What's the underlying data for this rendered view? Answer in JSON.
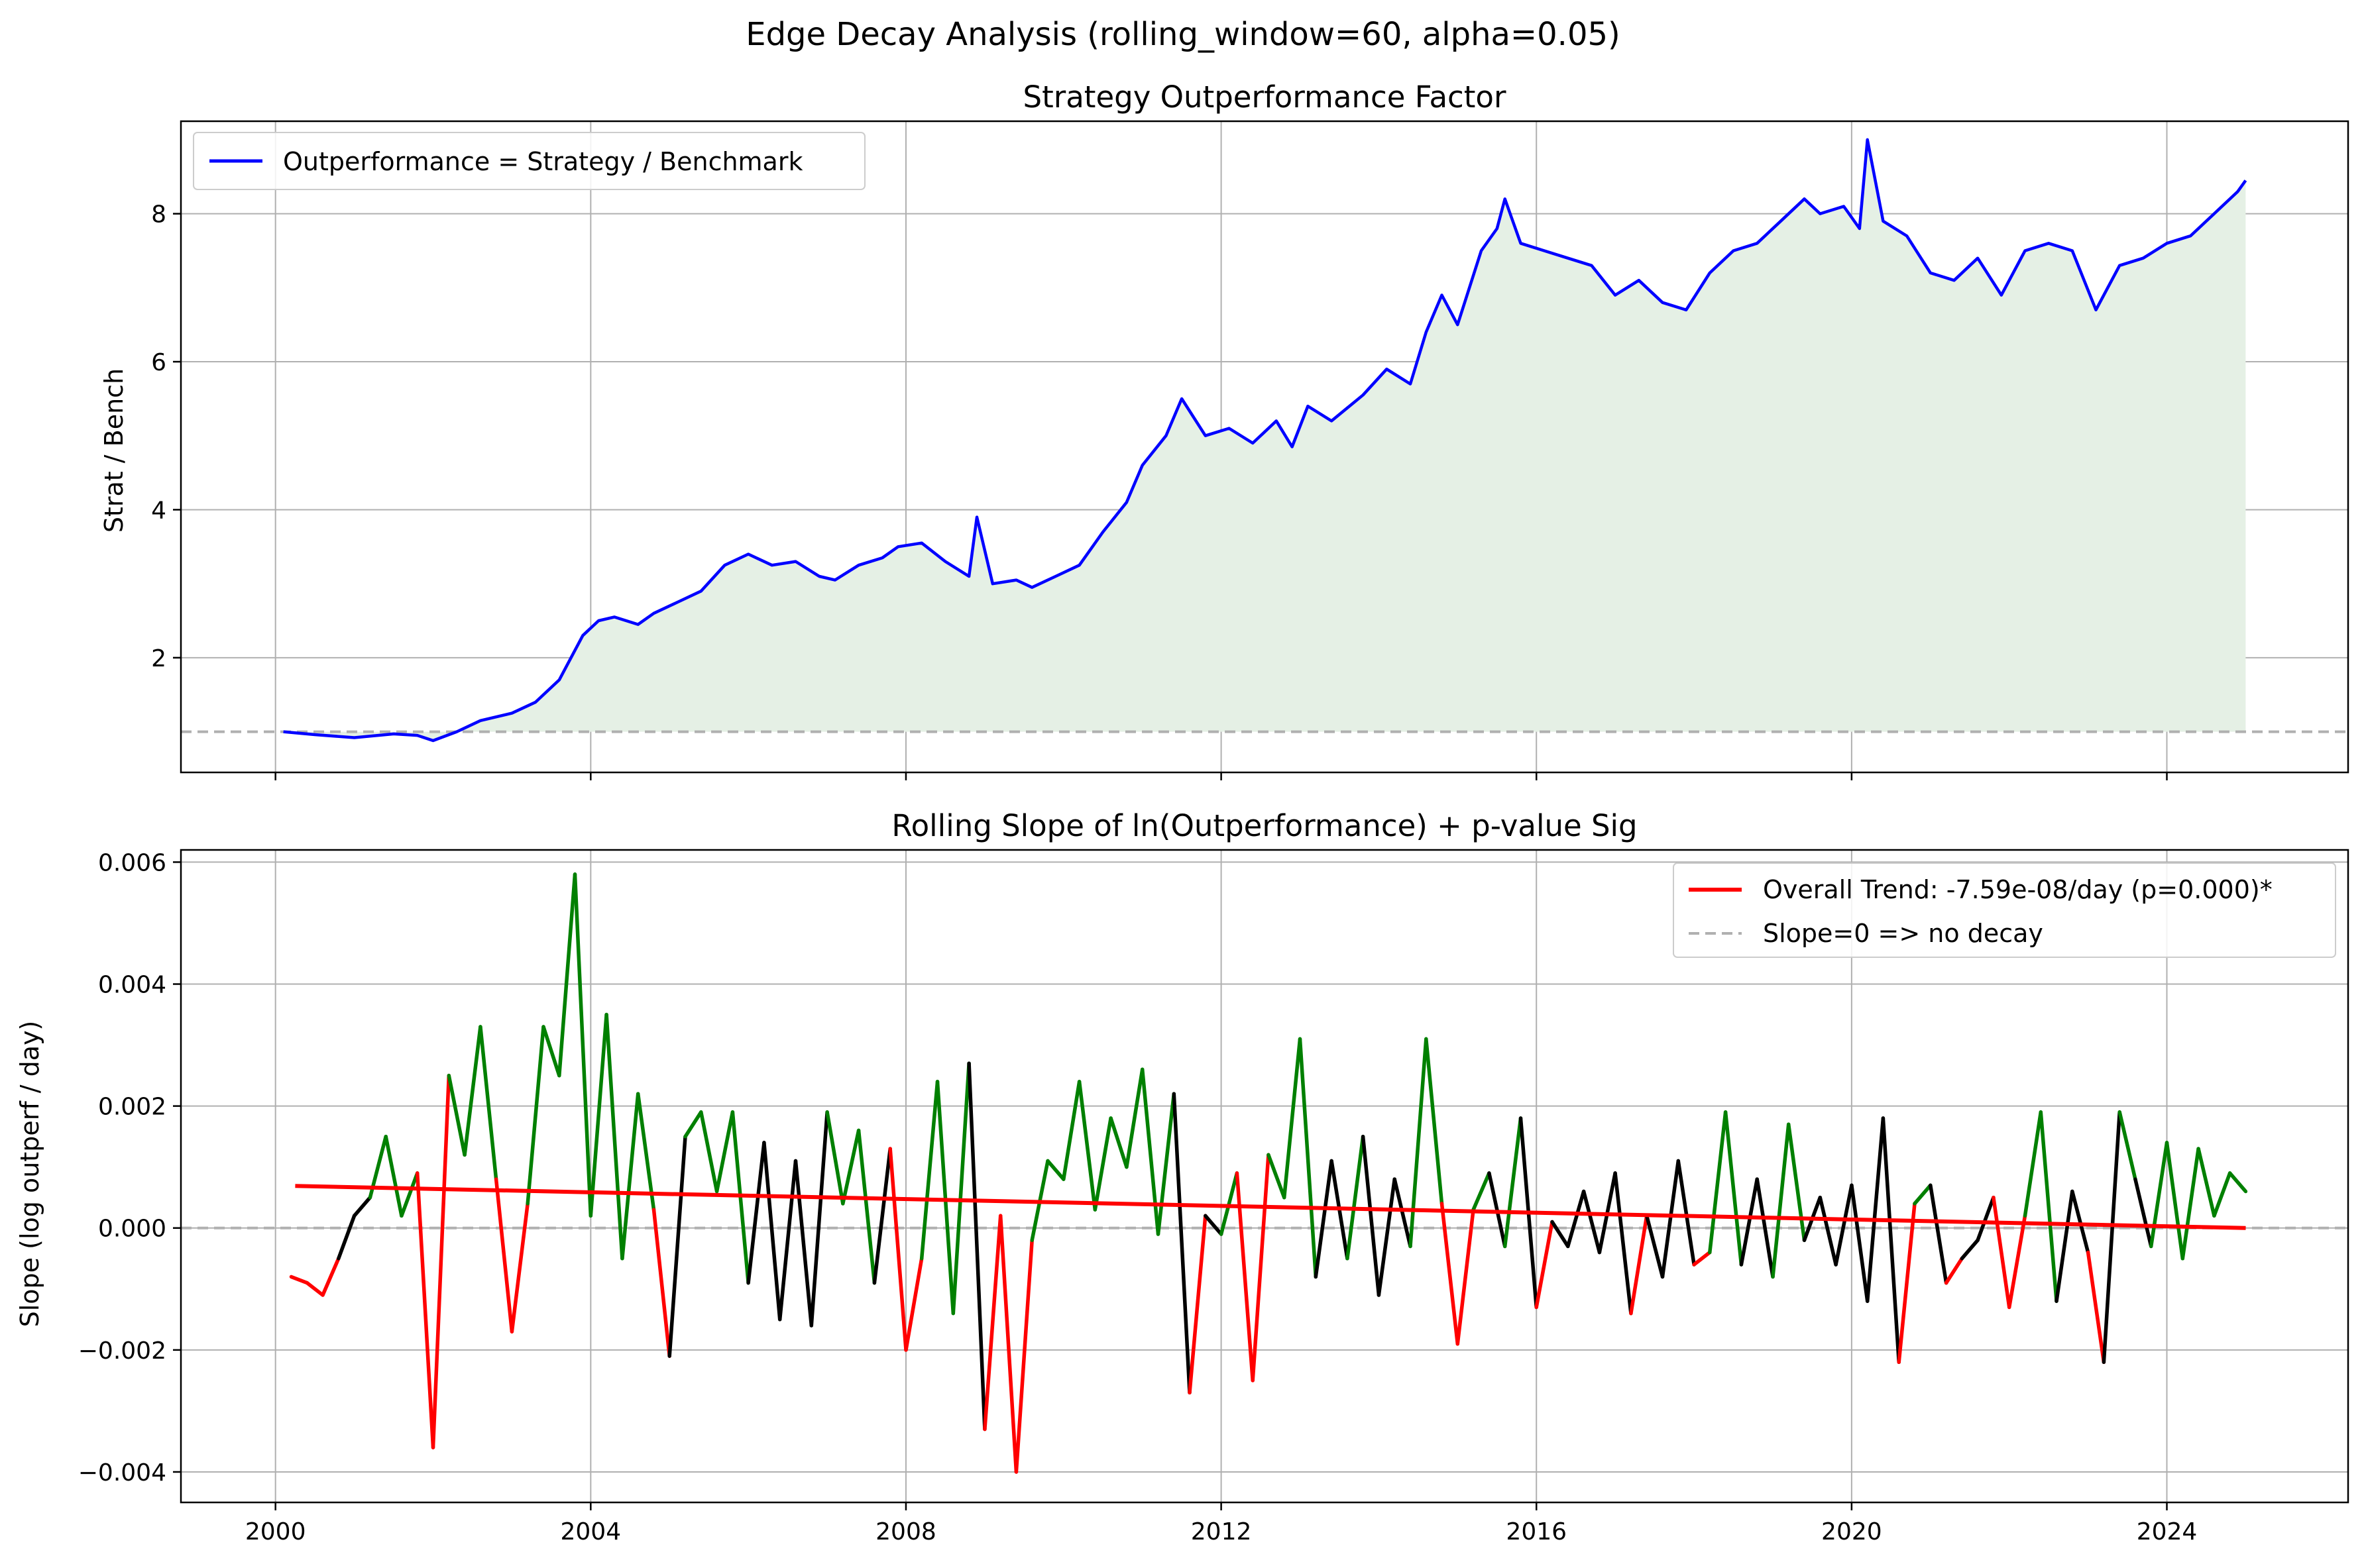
{
  "figure_title": "Edge Decay Analysis (rolling_window=60, alpha=0.05)",
  "colors": {
    "outperformance_line": "#0000ff",
    "fill": "#e5f0e5",
    "grid": "#b0b0b0",
    "significant_positive": "#008000",
    "significant_negative": "#ff0000",
    "not_significant": "#000000",
    "trend": "#ff0000",
    "reference": "#b0b0b0"
  },
  "chart_data": [
    {
      "type": "line",
      "title": "Strategy Outperformance Factor",
      "xlabel": "",
      "ylabel": "Strat / Bench",
      "xlim": [
        1998.8,
        2026.3
      ],
      "ylim": [
        0.45,
        9.25
      ],
      "yticks": [
        2,
        4,
        6,
        8
      ],
      "ytick_labels": [
        "2",
        "4",
        "6",
        "8"
      ],
      "grid": true,
      "fill_under": true,
      "reference_line": {
        "y": 1.0,
        "style": "dashed",
        "color": "gray"
      },
      "legend_position": "upper left",
      "series": [
        {
          "name": "Outperformance = Strategy / Benchmark",
          "x": [
            2000.1,
            2000.5,
            2001.0,
            2001.5,
            2001.8,
            2002.0,
            2002.3,
            2002.6,
            2003.0,
            2003.3,
            2003.6,
            2003.9,
            2004.1,
            2004.3,
            2004.6,
            2004.8,
            2005.1,
            2005.4,
            2005.7,
            2006.0,
            2006.3,
            2006.6,
            2006.9,
            2007.1,
            2007.4,
            2007.7,
            2007.9,
            2008.2,
            2008.5,
            2008.8,
            2008.9,
            2009.1,
            2009.4,
            2009.6,
            2009.9,
            2010.2,
            2010.5,
            2010.8,
            2011.0,
            2011.3,
            2011.5,
            2011.8,
            2012.1,
            2012.4,
            2012.7,
            2012.9,
            2013.1,
            2013.4,
            2013.8,
            2014.1,
            2014.4,
            2014.6,
            2014.8,
            2015.0,
            2015.3,
            2015.5,
            2015.6,
            2015.8,
            2016.1,
            2016.4,
            2016.7,
            2017.0,
            2017.3,
            2017.6,
            2017.9,
            2018.2,
            2018.5,
            2018.8,
            2019.1,
            2019.4,
            2019.6,
            2019.9,
            2020.1,
            2020.2,
            2020.4,
            2020.7,
            2021.0,
            2021.3,
            2021.6,
            2021.9,
            2022.2,
            2022.5,
            2022.8,
            2023.1,
            2023.4,
            2023.7,
            2024.0,
            2024.3,
            2024.6,
            2024.9,
            2025.0
          ],
          "y": [
            1.0,
            0.96,
            0.92,
            0.97,
            0.95,
            0.88,
            1.0,
            1.15,
            1.25,
            1.4,
            1.7,
            2.3,
            2.5,
            2.55,
            2.45,
            2.6,
            2.75,
            2.9,
            3.25,
            3.4,
            3.25,
            3.3,
            3.1,
            3.05,
            3.25,
            3.35,
            3.5,
            3.55,
            3.3,
            3.1,
            3.9,
            3.0,
            3.05,
            2.95,
            3.1,
            3.25,
            3.7,
            4.1,
            4.6,
            5.0,
            5.5,
            5.0,
            5.1,
            4.9,
            5.2,
            4.85,
            5.4,
            5.2,
            5.55,
            5.9,
            5.7,
            6.4,
            6.9,
            6.5,
            7.5,
            7.8,
            8.2,
            7.6,
            7.5,
            7.4,
            7.3,
            6.9,
            7.1,
            6.8,
            6.7,
            7.2,
            7.5,
            7.6,
            7.9,
            8.2,
            8.0,
            8.1,
            7.8,
            9.0,
            7.9,
            7.7,
            7.2,
            7.1,
            7.4,
            6.9,
            7.5,
            7.6,
            7.5,
            6.7,
            7.3,
            7.4,
            7.6,
            7.7,
            8.0,
            8.3,
            8.45
          ]
        }
      ]
    },
    {
      "type": "line",
      "title": "Rolling Slope of ln(Outperformance) + p-value Sig",
      "xlabel": "",
      "ylabel": "Slope (log outperf / day)",
      "xlim": [
        1998.8,
        2026.3
      ],
      "ylim": [
        -0.0045,
        0.0062
      ],
      "xticks": [
        2000,
        2004,
        2008,
        2012,
        2016,
        2020,
        2024
      ],
      "xtick_labels": [
        "2000",
        "2004",
        "2008",
        "2012",
        "2016",
        "2020",
        "2024"
      ],
      "yticks": [
        -0.004,
        -0.002,
        0.0,
        0.002,
        0.004,
        0.006
      ],
      "ytick_labels": [
        "−0.004",
        "−0.002",
        "0.000",
        "0.002",
        "0.004",
        "0.006"
      ],
      "grid": true,
      "legend_position": "upper right",
      "color_rule": "green = significant positive slope, red = significant negative slope, black = not significant",
      "series": [
        {
          "name": "rolling slope",
          "x": [
            2000.2,
            2000.4,
            2000.6,
            2000.8,
            2001.0,
            2001.2,
            2001.4,
            2001.6,
            2001.8,
            2002.0,
            2002.2,
            2002.4,
            2002.6,
            2002.8,
            2003.0,
            2003.2,
            2003.4,
            2003.6,
            2003.8,
            2004.0,
            2004.2,
            2004.4,
            2004.6,
            2004.8,
            2005.0,
            2005.2,
            2005.4,
            2005.6,
            2005.8,
            2006.0,
            2006.2,
            2006.4,
            2006.6,
            2006.8,
            2007.0,
            2007.2,
            2007.4,
            2007.6,
            2007.8,
            2008.0,
            2008.2,
            2008.4,
            2008.6,
            2008.8,
            2009.0,
            2009.2,
            2009.4,
            2009.6,
            2009.8,
            2010.0,
            2010.2,
            2010.4,
            2010.6,
            2010.8,
            2011.0,
            2011.2,
            2011.4,
            2011.6,
            2011.8,
            2012.0,
            2012.2,
            2012.4,
            2012.6,
            2012.8,
            2013.0,
            2013.2,
            2013.4,
            2013.6,
            2013.8,
            2014.0,
            2014.2,
            2014.4,
            2014.6,
            2014.8,
            2015.0,
            2015.2,
            2015.4,
            2015.6,
            2015.8,
            2016.0,
            2016.2,
            2016.4,
            2016.6,
            2016.8,
            2017.0,
            2017.2,
            2017.4,
            2017.6,
            2017.8,
            2018.0,
            2018.2,
            2018.4,
            2018.6,
            2018.8,
            2019.0,
            2019.2,
            2019.4,
            2019.6,
            2019.8,
            2020.0,
            2020.2,
            2020.4,
            2020.6,
            2020.8,
            2021.0,
            2021.2,
            2021.4,
            2021.6,
            2021.8,
            2022.0,
            2022.2,
            2022.4,
            2022.6,
            2022.8,
            2023.0,
            2023.2,
            2023.4,
            2023.6,
            2023.8,
            2024.0,
            2024.2,
            2024.4,
            2024.6,
            2024.8,
            2025.0
          ],
          "y": [
            -0.0008,
            -0.0009,
            -0.0011,
            -0.0005,
            0.0002,
            0.0005,
            0.0015,
            0.0002,
            0.0009,
            -0.0036,
            0.0025,
            0.0012,
            0.0033,
            0.0008,
            -0.0017,
            0.0004,
            0.0033,
            0.0025,
            0.0058,
            0.0002,
            0.0035,
            -0.0005,
            0.0022,
            0.0003,
            -0.0021,
            0.0015,
            0.0019,
            0.0006,
            0.0019,
            -0.0009,
            0.0014,
            -0.0015,
            0.0011,
            -0.0016,
            0.0019,
            0.0004,
            0.0016,
            -0.0009,
            0.0013,
            -0.002,
            -0.0005,
            0.0024,
            -0.0014,
            0.0027,
            -0.0033,
            0.0002,
            -0.004,
            -0.0002,
            0.0011,
            0.0008,
            0.0024,
            0.0003,
            0.0018,
            0.001,
            0.0026,
            -0.0001,
            0.0022,
            -0.0027,
            0.0002,
            -0.0001,
            0.0009,
            -0.0025,
            0.0012,
            0.0005,
            0.0031,
            -0.0008,
            0.0011,
            -0.0005,
            0.0015,
            -0.0011,
            0.0008,
            -0.0003,
            0.0031,
            0.0004,
            -0.0019,
            0.0003,
            0.0009,
            -0.0003,
            0.0018,
            -0.0013,
            0.0001,
            -0.0003,
            0.0006,
            -0.0004,
            0.0009,
            -0.0014,
            0.0002,
            -0.0008,
            0.0011,
            -0.0006,
            -0.0004,
            0.0019,
            -0.0006,
            0.0008,
            -0.0008,
            0.0017,
            -0.0002,
            0.0005,
            -0.0006,
            0.0007,
            -0.0012,
            0.0018,
            -0.0022,
            0.0004,
            0.0007,
            -0.0009,
            -0.0005,
            -0.0002,
            0.0005,
            -0.0013,
            0.0002,
            0.0019,
            -0.0012,
            0.0006,
            -0.0004,
            -0.0022,
            0.0019,
            0.0008,
            -0.0003,
            0.0014,
            -0.0005,
            0.0013,
            0.0002,
            0.0009,
            0.0006
          ]
        },
        {
          "name": "Overall Trend: -7.59e-08/day (p=0.000)*",
          "x": [
            2000.25,
            2025.0
          ],
          "y": [
            0.00069,
            0.0
          ]
        },
        {
          "name": "Slope=0 => no decay",
          "x": [
            1998.8,
            2026.3
          ],
          "y": [
            0.0,
            0.0
          ]
        }
      ]
    }
  ]
}
